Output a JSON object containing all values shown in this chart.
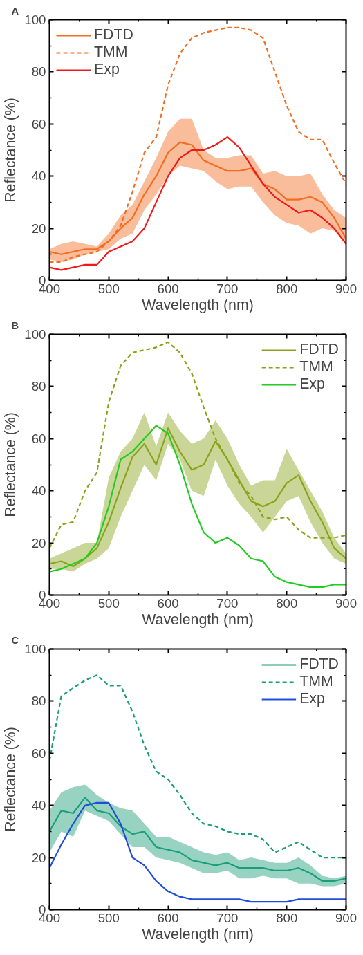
{
  "chart_data": [
    {
      "type": "line",
      "title": "A",
      "xlabel": "Wavelength (nm)",
      "ylabel": "Reflectance (%)",
      "xlim": [
        400,
        900
      ],
      "ylim": [
        0,
        100
      ],
      "xticks": [
        400,
        500,
        600,
        700,
        800,
        900
      ],
      "yticks": [
        0,
        20,
        40,
        60,
        80,
        100
      ],
      "grid": false,
      "legend": "top left",
      "x": [
        400,
        420,
        440,
        460,
        480,
        500,
        520,
        540,
        560,
        580,
        600,
        620,
        640,
        660,
        680,
        700,
        720,
        740,
        760,
        780,
        800,
        820,
        840,
        860,
        880,
        900
      ],
      "series": [
        {
          "name": "FDTD",
          "color": "#f26d21",
          "line_style": "solid",
          "values": [
            11,
            10,
            11,
            12,
            12,
            15,
            20,
            24,
            33,
            40,
            49,
            53,
            52,
            46,
            44,
            42,
            42,
            43,
            37,
            35,
            31,
            31,
            32,
            30,
            24,
            16
          ],
          "lower": [
            8,
            7,
            8,
            10,
            11,
            12,
            16,
            18,
            27,
            33,
            40,
            44,
            43,
            42,
            38,
            35,
            36,
            36,
            30,
            25,
            22,
            21,
            18,
            20,
            19,
            14
          ],
          "upper": [
            12,
            14,
            15,
            14,
            13,
            18,
            25,
            29,
            38,
            47,
            57,
            62,
            62,
            50,
            47,
            47,
            48,
            48,
            41,
            42,
            40,
            40,
            41,
            33,
            27,
            24
          ]
        },
        {
          "name": "TMM",
          "color": "#f26d21",
          "line_style": "dashed",
          "values": [
            7,
            7,
            9,
            10,
            11,
            15,
            21,
            34,
            49,
            55,
            75,
            87,
            93,
            95,
            96,
            97,
            97,
            96,
            93,
            80,
            67,
            57,
            54,
            54,
            45,
            37
          ]
        },
        {
          "name": "Exp",
          "color": "#f01818",
          "line_style": "solid",
          "values": [
            5,
            4,
            5,
            6,
            6,
            11,
            13,
            15,
            20,
            30,
            40,
            47,
            50,
            50,
            52,
            55,
            51,
            44,
            37,
            32,
            29,
            26,
            27,
            24,
            20,
            14
          ]
        }
      ]
    },
    {
      "type": "line",
      "title": "B",
      "xlabel": "Wavelength (nm)",
      "ylabel": "Reflectance (%)",
      "xlim": [
        400,
        900
      ],
      "ylim": [
        0,
        100
      ],
      "xticks": [
        400,
        500,
        600,
        700,
        800,
        900
      ],
      "yticks": [
        0,
        20,
        40,
        60,
        80,
        100
      ],
      "grid": false,
      "legend": "top right",
      "x": [
        400,
        420,
        440,
        460,
        480,
        500,
        520,
        540,
        560,
        580,
        600,
        620,
        640,
        660,
        680,
        700,
        720,
        740,
        760,
        780,
        800,
        820,
        840,
        860,
        880,
        900
      ],
      "series": [
        {
          "name": "FDTD",
          "color": "#8aa31a",
          "line_style": "solid",
          "values": [
            12,
            13,
            11,
            14,
            18,
            28,
            41,
            53,
            58,
            50,
            64,
            55,
            48,
            50,
            59,
            52,
            44,
            36,
            34,
            36,
            43,
            46,
            36,
            28,
            18,
            14
          ],
          "lower": [
            10,
            10,
            9,
            12,
            14,
            18,
            30,
            40,
            50,
            44,
            58,
            52,
            40,
            38,
            52,
            42,
            35,
            30,
            24,
            30,
            36,
            38,
            28,
            20,
            14,
            12
          ],
          "upper": [
            14,
            16,
            18,
            20,
            20,
            45,
            55,
            60,
            70,
            57,
            70,
            63,
            58,
            60,
            67,
            60,
            50,
            42,
            44,
            44,
            56,
            48,
            40,
            32,
            22,
            16
          ]
        },
        {
          "name": "TMM",
          "color": "#8aa31a",
          "line_style": "dashed",
          "values": [
            18,
            27,
            28,
            40,
            47,
            74,
            88,
            93,
            94,
            95,
            97,
            93,
            85,
            72,
            60,
            52,
            43,
            38,
            30,
            29,
            30,
            25,
            22,
            22,
            22,
            23
          ]
        },
        {
          "name": "Exp",
          "color": "#22cc22",
          "line_style": "solid",
          "values": [
            9,
            10,
            12,
            14,
            20,
            34,
            52,
            55,
            60,
            65,
            62,
            50,
            35,
            24,
            20,
            22,
            19,
            14,
            13,
            7,
            5,
            4,
            3,
            3,
            4,
            4
          ]
        }
      ]
    },
    {
      "type": "line",
      "title": "C",
      "xlabel": "Wavelength (nm)",
      "ylabel": "Reflectance (%)",
      "xlim": [
        400,
        900
      ],
      "ylim": [
        0,
        100
      ],
      "xticks": [
        400,
        500,
        600,
        700,
        800,
        900
      ],
      "yticks": [
        0,
        20,
        40,
        60,
        80,
        100
      ],
      "grid": false,
      "legend": "top right",
      "x": [
        400,
        420,
        440,
        460,
        480,
        500,
        520,
        540,
        560,
        580,
        600,
        620,
        640,
        660,
        680,
        700,
        720,
        740,
        760,
        780,
        800,
        820,
        840,
        860,
        880,
        900
      ],
      "series": [
        {
          "name": "FDTD",
          "color": "#1a9e77",
          "line_style": "solid",
          "values": [
            30,
            38,
            37,
            43,
            38,
            37,
            32,
            29,
            30,
            24,
            23,
            22,
            19,
            18,
            17,
            18,
            16,
            16,
            16,
            15,
            15,
            16,
            14,
            11,
            11,
            12
          ],
          "lower": [
            22,
            30,
            28,
            38,
            36,
            34,
            29,
            24,
            24,
            20,
            19,
            18,
            16,
            14,
            14,
            15,
            12,
            12,
            13,
            12,
            12,
            10,
            10,
            9,
            9,
            10
          ],
          "upper": [
            38,
            45,
            47,
            48,
            44,
            41,
            39,
            38,
            33,
            28,
            28,
            26,
            24,
            22,
            21,
            22,
            19,
            20,
            19,
            18,
            18,
            20,
            17,
            13,
            12,
            13
          ]
        },
        {
          "name": "TMM",
          "color": "#1a9e77",
          "line_style": "dashed",
          "values": [
            57,
            82,
            85,
            88,
            90,
            86,
            86,
            76,
            63,
            53,
            50,
            44,
            37,
            33,
            32,
            30,
            29,
            29,
            27,
            22,
            24,
            26,
            23,
            20,
            20,
            20
          ]
        },
        {
          "name": "Exp",
          "color": "#1f4fd8",
          "line_style": "solid",
          "values": [
            16,
            25,
            33,
            40,
            41,
            41,
            33,
            20,
            17,
            11,
            7,
            5,
            4,
            4,
            4,
            4,
            4,
            3,
            3,
            3,
            3,
            4,
            4,
            4,
            4,
            4
          ]
        }
      ]
    }
  ]
}
